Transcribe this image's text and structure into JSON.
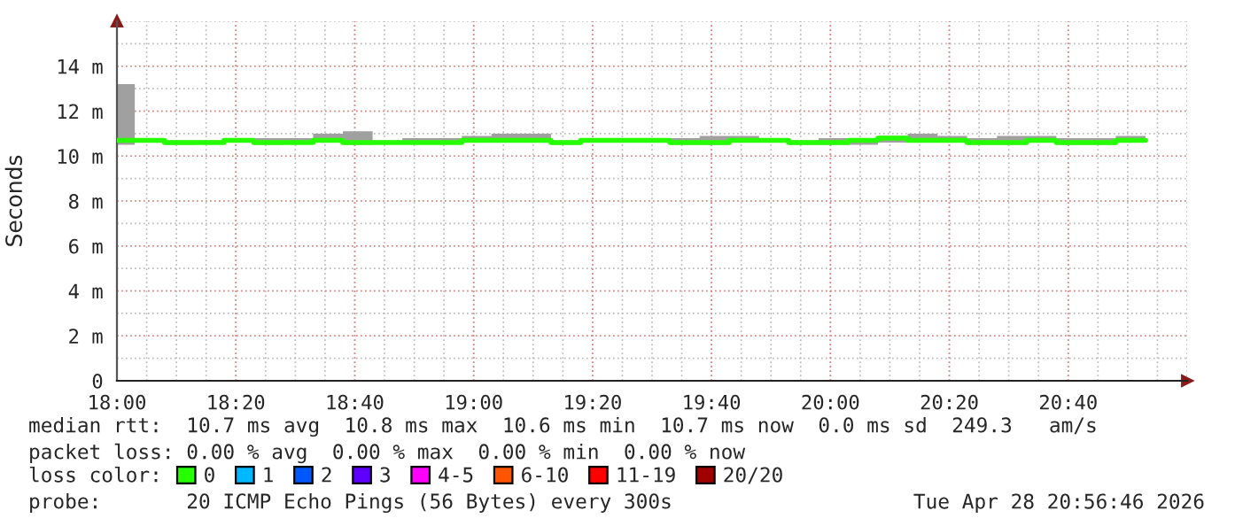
{
  "chart_data": {
    "type": "step",
    "ylabel": "Seconds",
    "x": [
      "2026-04-28T18:00",
      "2026-04-28T18:03",
      "2026-04-28T18:08",
      "2026-04-28T18:13",
      "2026-04-28T18:18",
      "2026-04-28T18:23",
      "2026-04-28T18:28",
      "2026-04-28T18:33",
      "2026-04-28T18:38",
      "2026-04-28T18:43",
      "2026-04-28T18:48",
      "2026-04-28T18:53",
      "2026-04-28T18:58",
      "2026-04-28T19:03",
      "2026-04-28T19:08",
      "2026-04-28T19:13",
      "2026-04-28T19:18",
      "2026-04-28T19:23",
      "2026-04-28T19:28",
      "2026-04-28T19:33",
      "2026-04-28T19:38",
      "2026-04-28T19:43",
      "2026-04-28T19:48",
      "2026-04-28T19:53",
      "2026-04-28T19:58",
      "2026-04-28T20:03",
      "2026-04-28T20:08",
      "2026-04-28T20:13",
      "2026-04-28T20:18",
      "2026-04-28T20:23",
      "2026-04-28T20:28",
      "2026-04-28T20:33",
      "2026-04-28T20:38",
      "2026-04-28T20:43",
      "2026-04-28T20:48",
      "2026-04-28T20:53"
    ],
    "series": [
      {
        "name": "0",
        "color": "#26ff00",
        "values": [
          10.7,
          10.7,
          10.6,
          10.6,
          10.7,
          10.6,
          10.6,
          10.7,
          10.6,
          10.6,
          10.6,
          10.6,
          10.7,
          10.7,
          10.7,
          10.6,
          10.7,
          10.7,
          10.7,
          10.6,
          10.6,
          10.7,
          10.7,
          10.6,
          10.6,
          10.7,
          10.8,
          10.7,
          10.7,
          10.6,
          10.6,
          10.7,
          10.6,
          10.6,
          10.7,
          10.7
        ],
        "lower": [
          10.5,
          10.6,
          10.5,
          10.6,
          10.6,
          10.5,
          10.6,
          10.6,
          10.5,
          10.6,
          10.6,
          10.6,
          10.6,
          10.6,
          10.6,
          10.5,
          10.6,
          10.6,
          10.6,
          10.5,
          10.5,
          10.6,
          10.6,
          10.5,
          10.5,
          10.5,
          10.6,
          10.6,
          10.6,
          10.5,
          10.5,
          10.6,
          10.5,
          10.5,
          10.6,
          10.6
        ],
        "upper": [
          13.2,
          10.8,
          10.7,
          10.7,
          10.8,
          10.8,
          10.8,
          11.0,
          11.1,
          10.7,
          10.8,
          10.8,
          10.9,
          11.0,
          11.0,
          10.7,
          10.8,
          10.8,
          10.8,
          10.8,
          10.9,
          10.9,
          10.8,
          10.7,
          10.8,
          10.8,
          10.9,
          11.0,
          10.9,
          10.8,
          10.9,
          10.9,
          10.8,
          10.8,
          10.9,
          10.9
        ]
      },
      {
        "name": "1",
        "color": "#00b8ff",
        "values": [
          null,
          null,
          null,
          null,
          null,
          null,
          null,
          null,
          null,
          null,
          null,
          null,
          null,
          null,
          null,
          null,
          null,
          null,
          null,
          null,
          null,
          null,
          null,
          null,
          null,
          null,
          null,
          null,
          null,
          null,
          null,
          null,
          null,
          null,
          null,
          null
        ]
      },
      {
        "name": "2",
        "color": "#0059ff",
        "values": [
          null,
          null,
          null,
          null,
          null,
          null,
          null,
          null,
          null,
          null,
          null,
          null,
          null,
          null,
          null,
          null,
          null,
          null,
          null,
          null,
          null,
          null,
          null,
          null,
          null,
          null,
          null,
          null,
          null,
          null,
          null,
          null,
          null,
          null,
          null,
          null
        ]
      },
      {
        "name": "3",
        "color": "#5e00ff",
        "values": [
          null,
          null,
          null,
          null,
          null,
          null,
          null,
          null,
          null,
          null,
          null,
          null,
          null,
          null,
          null,
          null,
          null,
          null,
          null,
          null,
          null,
          null,
          null,
          null,
          null,
          null,
          null,
          null,
          null,
          null,
          null,
          null,
          null,
          null,
          null,
          null
        ]
      },
      {
        "name": "4-5",
        "color": "#ff00ff",
        "values": [
          null,
          null,
          null,
          null,
          null,
          null,
          null,
          null,
          null,
          null,
          null,
          null,
          null,
          null,
          null,
          null,
          null,
          null,
          null,
          null,
          null,
          null,
          null,
          null,
          null,
          null,
          null,
          null,
          null,
          null,
          null,
          null,
          null,
          null,
          null,
          null
        ]
      },
      {
        "name": "6-10",
        "color": "#ff5500",
        "values": [
          null,
          null,
          null,
          null,
          null,
          null,
          null,
          null,
          null,
          null,
          null,
          null,
          null,
          null,
          null,
          null,
          null,
          null,
          null,
          null,
          null,
          null,
          null,
          null,
          null,
          null,
          null,
          null,
          null,
          null,
          null,
          null,
          null,
          null,
          null,
          null
        ]
      },
      {
        "name": "11-19",
        "color": "#ff0000",
        "values": [
          null,
          null,
          null,
          null,
          null,
          null,
          null,
          null,
          null,
          null,
          null,
          null,
          null,
          null,
          null,
          null,
          null,
          null,
          null,
          null,
          null,
          null,
          null,
          null,
          null,
          null,
          null,
          null,
          null,
          null,
          null,
          null,
          null,
          null,
          null,
          null
        ]
      },
      {
        "name": "20/20",
        "color": "#a10000",
        "values": [
          null,
          null,
          null,
          null,
          null,
          null,
          null,
          null,
          null,
          null,
          null,
          null,
          null,
          null,
          null,
          null,
          null,
          null,
          null,
          null,
          null,
          null,
          null,
          null,
          null,
          null,
          null,
          null,
          null,
          null,
          null,
          null,
          null,
          null,
          null,
          null
        ]
      }
    ],
    "legend_title": "loss color:",
    "legend": "bottom",
    "xlim": [
      "2026-04-28T18:00",
      "2026-04-28T21:00"
    ],
    "xticks": [
      {
        "value": "2026-04-28T18:00",
        "label": "18:00"
      },
      {
        "value": "2026-04-28T18:20",
        "label": "18:20"
      },
      {
        "value": "2026-04-28T18:40",
        "label": "18:40"
      },
      {
        "value": "2026-04-28T19:00",
        "label": "19:00"
      },
      {
        "value": "2026-04-28T19:20",
        "label": "19:20"
      },
      {
        "value": "2026-04-28T19:40",
        "label": "19:40"
      },
      {
        "value": "2026-04-28T20:00",
        "label": "20:00"
      },
      {
        "value": "2026-04-28T20:20",
        "label": "20:20"
      },
      {
        "value": "2026-04-28T20:40",
        "label": "20:40"
      }
    ],
    "ylim": [
      0,
      16
    ],
    "yticks": [
      0,
      {
        "value": 2,
        "label": "2 m"
      },
      {
        "value": 4,
        "label": "4 m"
      },
      {
        "value": 6,
        "label": "6 m"
      },
      {
        "value": 8,
        "label": "8 m"
      },
      {
        "value": 10,
        "label": "10 m"
      },
      {
        "value": 12,
        "label": "12 m"
      },
      {
        "value": 14,
        "label": "14 m"
      }
    ],
    "grid": true,
    "annotations": [
      "median rtt:  10.7 ms avg  10.8 ms max  10.6 ms min  10.7 ms now  0.0 ms sd  249.3   am/s",
      "packet loss: 0.00 % avg  0.00 % max  0.00 % min  0.00 % now",
      "probe:       20 ICMP Echo Pings (56 Bytes) every 300s",
      "Tue Apr 28 20:56:46 2026"
    ]
  }
}
